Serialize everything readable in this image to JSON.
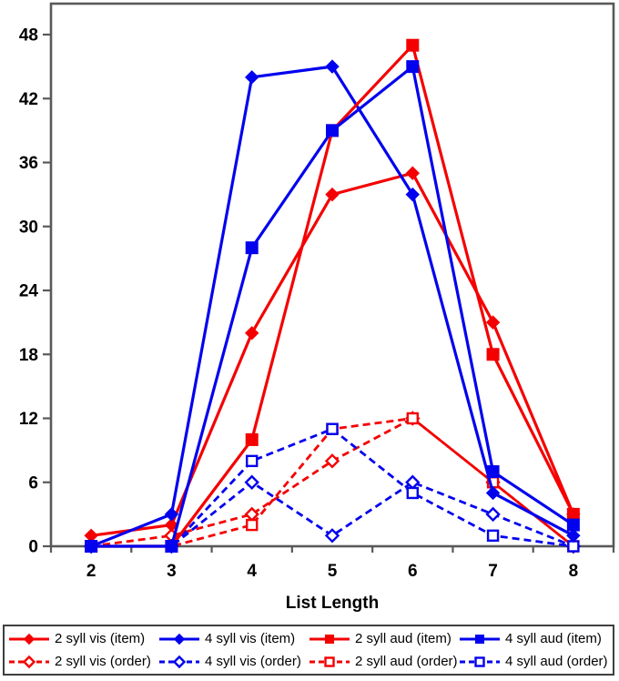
{
  "chart_data": {
    "type": "line",
    "title": "",
    "xlabel": "List Length",
    "ylabel": "",
    "x": [
      2,
      3,
      4,
      5,
      6,
      7,
      8
    ],
    "ylim": [
      0,
      50
    ],
    "yticks": [
      0,
      6,
      12,
      18,
      24,
      30,
      36,
      42,
      48
    ],
    "grid": false,
    "legend_position": "bottom-box",
    "colors": {
      "red": "#f40000",
      "blue": "#0202ee",
      "axis": "#595959",
      "text": "#000000",
      "legend_border": "#3f3f3f"
    },
    "series": [
      {
        "name": "2 syll vis (item)",
        "color": "red",
        "marker": "diamond",
        "fill": "filled",
        "line": "solid",
        "values": [
          1,
          2,
          20,
          33,
          35,
          21,
          3
        ]
      },
      {
        "name": "4 syll vis (item)",
        "color": "blue",
        "marker": "diamond",
        "fill": "filled",
        "line": "solid",
        "values": [
          0,
          3,
          44,
          45,
          33,
          5,
          1
        ]
      },
      {
        "name": "2 syll aud (item)",
        "color": "red",
        "marker": "square",
        "fill": "filled",
        "line": "solid",
        "values": [
          0,
          0,
          10,
          39,
          47,
          18,
          3
        ]
      },
      {
        "name": "4 syll aud (item)",
        "color": "blue",
        "marker": "square",
        "fill": "filled",
        "line": "solid",
        "values": [
          0,
          0,
          28,
          39,
          45,
          7,
          2
        ]
      },
      {
        "name": "2 syll vis (order)",
        "color": "red",
        "marker": "diamond",
        "fill": "open",
        "line": "dashed",
        "values": [
          0,
          1,
          3,
          8,
          12,
          6,
          0
        ]
      },
      {
        "name": "4 syll vis (order)",
        "color": "blue",
        "marker": "diamond",
        "fill": "open",
        "line": "dashed",
        "values": [
          0,
          0,
          6,
          1,
          6,
          3,
          0
        ]
      },
      {
        "name": "2 syll aud (order)",
        "color": "red",
        "marker": "square",
        "fill": "open",
        "line": "dashed",
        "values": [
          0,
          0,
          2,
          11,
          12,
          6,
          0
        ]
      },
      {
        "name": "4 syll aud (order)",
        "color": "blue",
        "marker": "square",
        "fill": "open",
        "line": "dashed",
        "values": [
          0,
          0,
          8,
          11,
          5,
          1,
          0
        ]
      }
    ],
    "legend_row_major_order": [
      0,
      1,
      2,
      3,
      4,
      5,
      6,
      7
    ]
  }
}
